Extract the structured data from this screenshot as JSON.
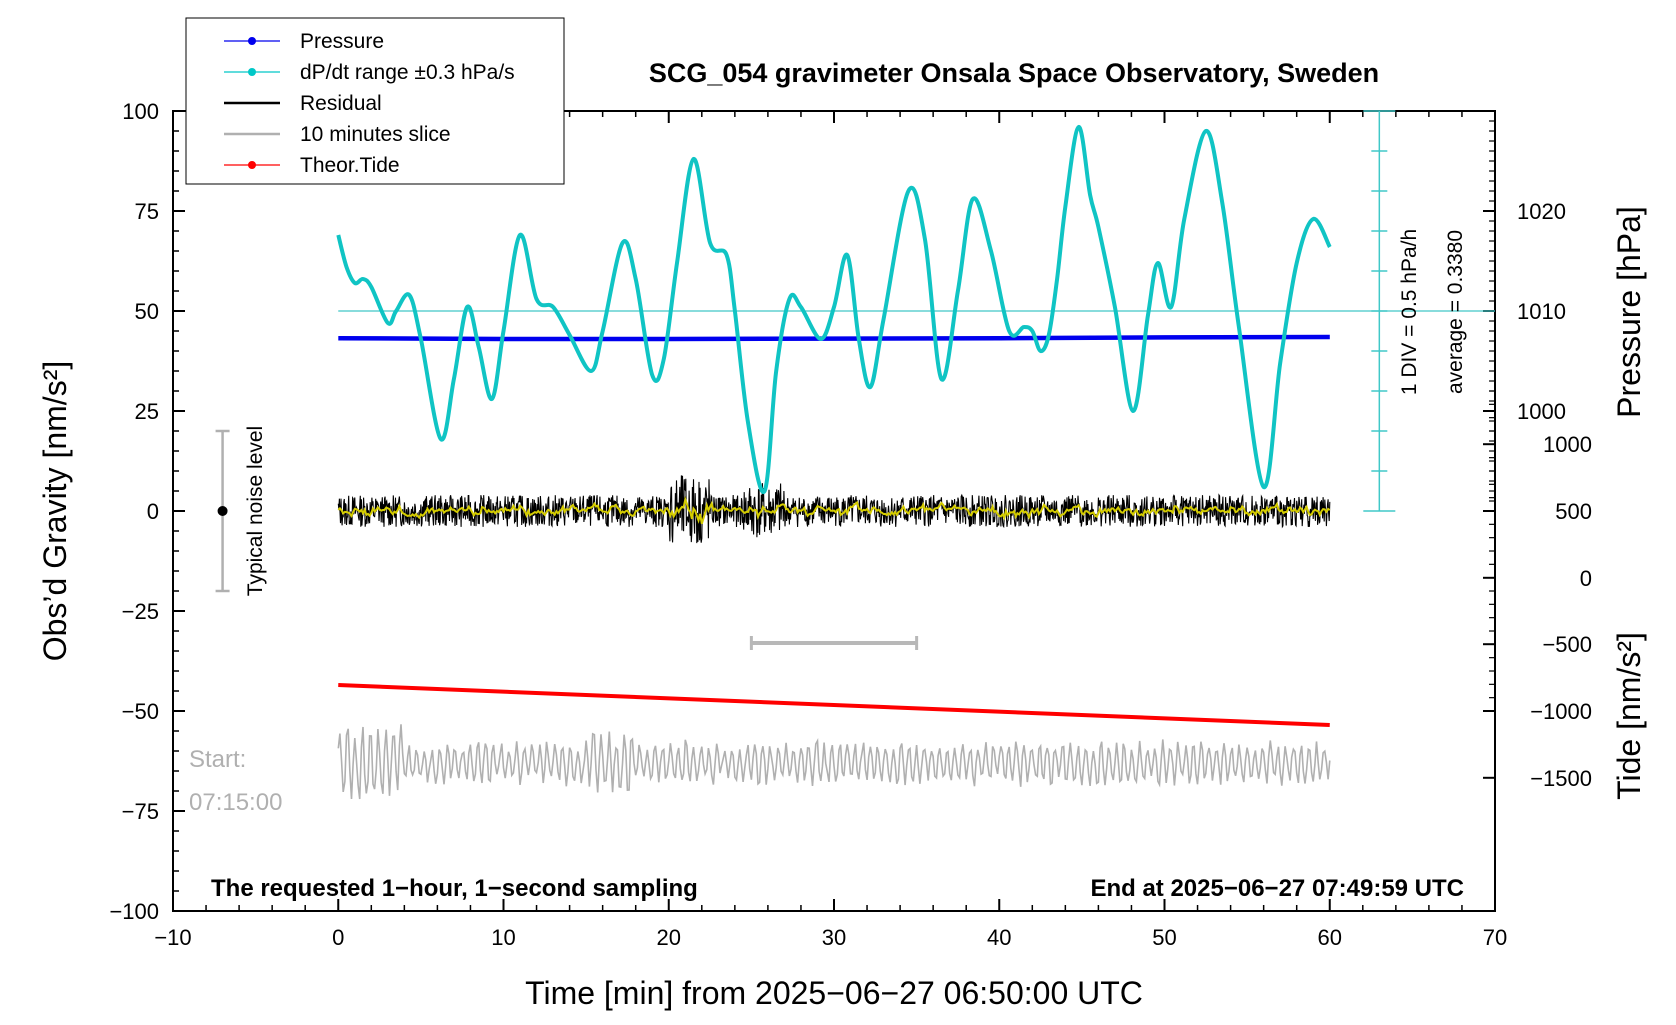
{
  "chart_data": {
    "type": "line",
    "title": "SCG_054 gravimeter Onsala Space Observatory, Sweden",
    "xlabel": "Time [min] from 2025−06−27 06:50:00 UTC",
    "ylabel_left": "Obs’d Gravity [nm/s²]",
    "ylabel_right_top": "Pressure [hPa]",
    "ylabel_right_bottom": "Tide [nm/s²]",
    "xlim": [
      -10,
      70
    ],
    "ylim": [
      -100,
      100
    ],
    "x_ticks": [
      -10,
      0,
      10,
      20,
      30,
      40,
      50,
      60,
      70
    ],
    "x_tick_labels": [
      "−10",
      "0",
      "10",
      "20",
      "30",
      "40",
      "50",
      "60",
      "70"
    ],
    "y_ticks": [
      100,
      75,
      50,
      25,
      0,
      -25,
      -50,
      -75,
      -100
    ],
    "y_tick_labels": [
      "100",
      "75",
      "50",
      "25",
      "0",
      "−25",
      "−50",
      "−75",
      "−100"
    ],
    "pressure_axis": {
      "ticks": [
        1000,
        1010,
        1020
      ],
      "tick_labels": [
        "1000",
        "1010",
        "1020"
      ],
      "ticks_gravity_equiv": [
        25,
        50,
        75
      ]
    },
    "tide_axis": {
      "ticks": [
        1000,
        500,
        0,
        -500,
        -1000,
        -1500
      ],
      "tick_labels": [
        "1000",
        "500",
        "0",
        "−500",
        "−1000",
        "−1500"
      ],
      "ticks_gravity_equiv": [
        16.7,
        0,
        -16.7,
        -33.3,
        -50,
        -66.7
      ]
    },
    "legend": {
      "placement": "top-left",
      "entries": [
        {
          "name": "Pressure",
          "color": "#0000ee",
          "marker": "dot"
        },
        {
          "name": "dP/dt range ±0.3 hPa/s",
          "color": "#00c8c8",
          "marker": "dot"
        },
        {
          "name": "Residual",
          "color": "#000000",
          "marker": "line"
        },
        {
          "name": "10 minutes slice",
          "color": "#b0b0b0",
          "marker": "line"
        },
        {
          "name": "Theor.Tide",
          "color": "#ff0000",
          "marker": "dot"
        }
      ]
    },
    "series": [
      {
        "name": "Pressure",
        "color": "#0000ee",
        "x": [
          0,
          10,
          20,
          30,
          40,
          50,
          60
        ],
        "y": [
          43.2,
          43.0,
          43.0,
          43.1,
          43.2,
          43.4,
          43.5
        ]
      },
      {
        "name": "dP/dt range ±0.3 hPa/s",
        "color": "#00c8c8",
        "x": [
          0,
          0.5,
          1,
          1.5,
          2,
          3,
          3.5,
          4.3,
          5,
          6.2,
          7,
          7.8,
          8.5,
          9.3,
          10,
          11,
          12,
          13,
          14,
          15.3,
          16,
          17.2,
          18,
          19,
          19.7,
          20.5,
          21.5,
          22.5,
          23.5,
          24,
          24.8,
          25.8,
          26.5,
          27.3,
          28,
          29.2,
          30,
          30.8,
          31.5,
          32.2,
          33,
          34.5,
          35.5,
          36.5,
          37.5,
          38.4,
          39.5,
          40.6,
          41.5,
          42,
          42.5,
          43,
          43.5,
          44,
          44.8,
          45.5,
          46,
          47,
          48.1,
          49,
          49.6,
          50.4,
          51.2,
          52.5,
          53.5,
          54.5,
          56,
          57,
          58,
          59,
          60
        ],
        "y": [
          69,
          61,
          57,
          58,
          56,
          47,
          50,
          54,
          43,
          18,
          33,
          51,
          41,
          28,
          45,
          69,
          53,
          51,
          44,
          35,
          45,
          67,
          58,
          34,
          38,
          62,
          88,
          67,
          64,
          50,
          22,
          5,
          35,
          53,
          51,
          43,
          51,
          64,
          43,
          31,
          48,
          80,
          68,
          33,
          55,
          78,
          65,
          45,
          46,
          45,
          40,
          44,
          58,
          76,
          96,
          79,
          71,
          51,
          25,
          49,
          62,
          51,
          73,
          95,
          77,
          46,
          6,
          37,
          62,
          73,
          66
        ]
      },
      {
        "name": "Residual",
        "color": "#000000",
        "x": [
          0,
          60
        ],
        "y": [
          0,
          0
        ]
      },
      {
        "name": "10 minutes slice",
        "color": "#b0b0b0",
        "x": [
          0,
          60
        ],
        "y": [
          -63,
          -63
        ]
      },
      {
        "name": "Theor.Tide",
        "color": "#ff0000",
        "x": [
          0,
          60
        ],
        "y": [
          -43.5,
          -53.5
        ]
      }
    ],
    "noise_bar": {
      "label": "Typical noise level",
      "x": -7,
      "center": 0,
      "low": -20,
      "high": 20
    },
    "slice_bar": {
      "x_start": 25,
      "x_end": 35,
      "y": -33
    },
    "pressure_scale_bar": {
      "x": 63,
      "y_low": 0,
      "y_high": 100,
      "average_line_y": 50,
      "label_div": "1 DIV = 0.5 hPa/h",
      "label_avg": "average = 0.3380"
    },
    "annotations": {
      "bottom_left": "The requested 1−hour, 1−second sampling",
      "bottom_right": "End at 2025−06−27 07:49:59 UTC",
      "start_label": "Start:",
      "start_time": "07:15:00"
    },
    "grid": false
  }
}
